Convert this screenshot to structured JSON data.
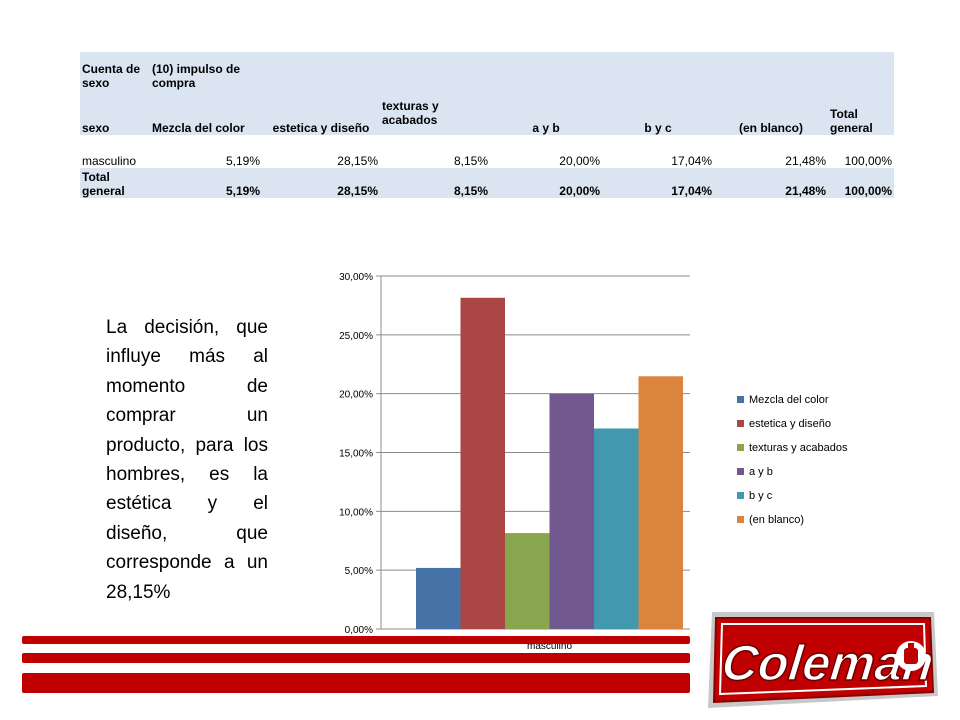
{
  "table": {
    "header1": {
      "col0": "Cuenta de sexo",
      "col1": "(10) impulso de compra"
    },
    "header2": [
      "sexo",
      "Mezcla del color",
      "estetica y diseño",
      "texturas y acabados",
      "a y b",
      "b y c",
      "(en blanco)",
      "Total general"
    ],
    "rows": [
      {
        "label": "masculino",
        "values": [
          "5,19%",
          "28,15%",
          "8,15%",
          "20,00%",
          "17,04%",
          "21,48%",
          "100,00%"
        ]
      }
    ],
    "total": {
      "label": "Total general",
      "values": [
        "5,19%",
        "28,15%",
        "8,15%",
        "20,00%",
        "17,04%",
        "21,48%",
        "100,00%"
      ]
    }
  },
  "description": "La decisión, que influye más al momento de comprar un producto, para los hombres, es la estética y el diseño, que corresponde a un 28,15%",
  "logo": {
    "text": "Coleman"
  },
  "chart_data": {
    "type": "bar",
    "categories": [
      "masculino"
    ],
    "series": [
      {
        "name": "Mezcla del color",
        "values": [
          5.19
        ],
        "color": "#4572a7"
      },
      {
        "name": "estetica y diseño",
        "values": [
          28.15
        ],
        "color": "#aa4643"
      },
      {
        "name": "texturas y acabados",
        "values": [
          8.15
        ],
        "color": "#89a54e"
      },
      {
        "name": "a y b",
        "values": [
          20.0
        ],
        "color": "#71588f"
      },
      {
        "name": "b y c",
        "values": [
          17.04
        ],
        "color": "#4198af"
      },
      {
        "name": "(en blanco)",
        "values": [
          21.48
        ],
        "color": "#db843d"
      }
    ],
    "ylim": [
      0,
      30
    ],
    "yticks": [
      "0,00%",
      "5,00%",
      "10,00%",
      "15,00%",
      "20,00%",
      "25,00%",
      "30,00%"
    ],
    "grid": true,
    "legend": "right"
  }
}
